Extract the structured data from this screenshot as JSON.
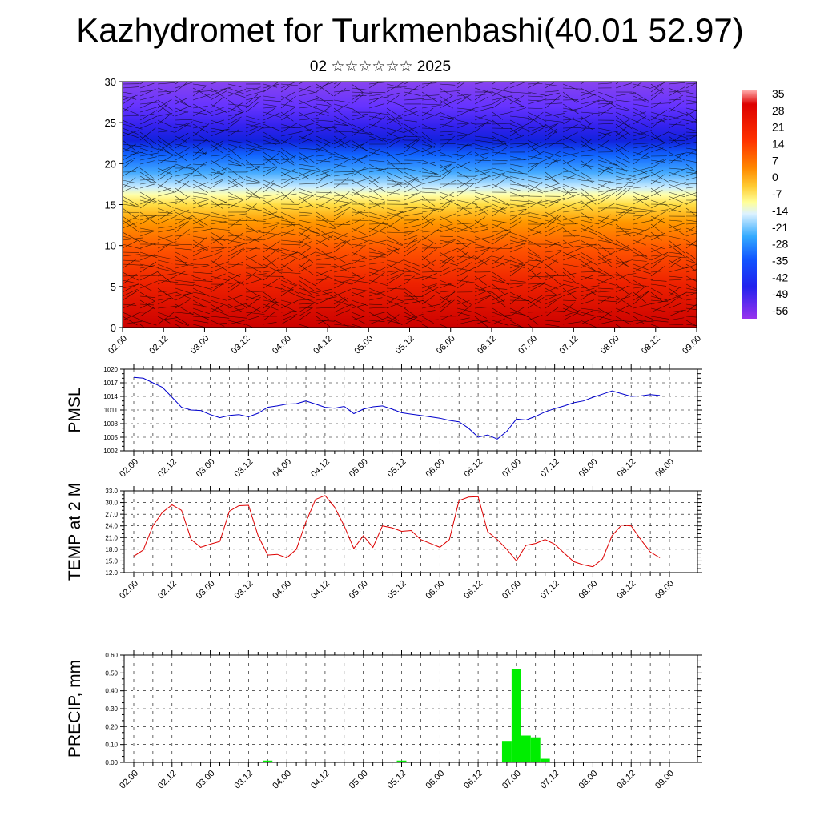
{
  "header": {
    "title": "Kazhydromet for Turkmenbashi(40.01 52.97)",
    "subtitle": "02 ☆☆☆☆☆☆ 2025"
  },
  "colors": {
    "pmsl_line": "#0000cc",
    "temp_line": "#dd0000",
    "precip_bar": "#00ee00",
    "colorbar": [
      "#ff9a9a",
      "#e60000",
      "#ff4400",
      "#ff8800",
      "#ffcc33",
      "#ffff99",
      "#cfeeff",
      "#33aaff",
      "#1133ee",
      "#4422ff",
      "#8a2be2"
    ]
  },
  "time_axis": {
    "tick_labels": [
      "02.00",
      "02.12",
      "03.00",
      "03.12",
      "04.00",
      "04.12",
      "05.00",
      "05.12",
      "06.00",
      "06.12",
      "07.00",
      "07.12",
      "08.00",
      "08.12",
      "09.00"
    ]
  },
  "chart_data": [
    {
      "type": "heatmap",
      "title": "",
      "xlabel": "",
      "ylabel": "",
      "ylim": [
        0,
        30
      ],
      "y_ticks": [
        "0",
        "5",
        "10",
        "15",
        "20",
        "25",
        "30"
      ],
      "colorbar_labels": [
        "35",
        "28",
        "21",
        "14",
        "7",
        "0",
        "-7",
        "-14",
        "-21",
        "-28",
        "-35",
        "-42",
        "-49",
        "-56"
      ],
      "overlay": "wind barbs"
    },
    {
      "type": "line",
      "ylabel": "PMSL",
      "ylim": [
        1002,
        1020
      ],
      "y_ticks": [
        "1020",
        "1017",
        "1014",
        "1011",
        "1008",
        "1005",
        "1002"
      ],
      "xlim_hours": [
        0,
        168
      ],
      "x_hours": [
        0,
        3,
        6,
        9,
        12,
        15,
        18,
        21,
        24,
        27,
        30,
        33,
        36,
        39,
        42,
        45,
        48,
        51,
        54,
        57,
        60,
        63,
        66,
        69,
        72,
        75,
        78,
        81,
        84,
        87,
        90,
        93,
        96,
        99,
        102,
        105,
        108,
        111,
        114,
        117,
        120,
        123,
        126,
        129,
        132,
        135,
        138,
        141,
        144,
        147,
        150,
        153,
        156,
        159,
        162,
        165
      ],
      "values": [
        1018.2,
        1018.0,
        1017.0,
        1016.0,
        1013.8,
        1011.6,
        1011.0,
        1010.9,
        1010.0,
        1009.3,
        1009.8,
        1010.0,
        1009.5,
        1010.3,
        1011.6,
        1011.9,
        1012.3,
        1012.4,
        1013.0,
        1012.3,
        1011.6,
        1011.4,
        1011.8,
        1010.2,
        1011.2,
        1011.7,
        1011.9,
        1011.2,
        1010.4,
        1010.1,
        1009.8,
        1009.5,
        1009.2,
        1008.7,
        1008.4,
        1007.0,
        1005.0,
        1005.5,
        1004.6,
        1006.3,
        1009.0,
        1008.8,
        1009.6,
        1010.6,
        1011.3,
        1011.9,
        1012.6,
        1013.0,
        1013.8,
        1014.5,
        1015.2,
        1014.6,
        1014.0,
        1014.1,
        1014.4,
        1014.2
      ],
      "series": [
        {
          "name": "",
          "color": "#0000cc"
        }
      ]
    },
    {
      "type": "line",
      "ylabel": "TEMP at 2 M",
      "ylim": [
        12,
        33
      ],
      "y_ticks": [
        "33.0",
        "30.0",
        "27.0",
        "24.0",
        "21.0",
        "18.0",
        "15.0",
        "12.0"
      ],
      "xlim_hours": [
        0,
        168
      ],
      "x_hours": [
        0,
        3,
        6,
        9,
        12,
        15,
        18,
        21,
        24,
        27,
        30,
        33,
        36,
        39,
        42,
        45,
        48,
        51,
        54,
        57,
        60,
        63,
        66,
        69,
        72,
        75,
        78,
        81,
        84,
        87,
        90,
        93,
        96,
        99,
        102,
        105,
        108,
        111,
        114,
        117,
        120,
        123,
        126,
        129,
        132,
        135,
        138,
        141,
        144,
        147,
        150,
        153,
        156,
        159,
        162,
        165
      ],
      "values": [
        16.2,
        17.8,
        24.0,
        27.5,
        29.4,
        28.0,
        20.5,
        18.5,
        19.3,
        20.0,
        27.8,
        29.2,
        29.3,
        21.5,
        16.5,
        16.7,
        15.8,
        18.0,
        25.0,
        30.8,
        31.8,
        28.8,
        24.0,
        18.2,
        21.5,
        18.5,
        24.0,
        23.5,
        22.6,
        22.8,
        20.5,
        19.5,
        18.5,
        20.5,
        30.5,
        31.4,
        31.5,
        22.5,
        20.5,
        18.0,
        15.0,
        19.0,
        19.5,
        20.5,
        19.3,
        17.0,
        14.8,
        14.0,
        13.5,
        15.5,
        21.5,
        24.2,
        24.0,
        20.5,
        17.3,
        15.8
      ],
      "series": [
        {
          "name": "",
          "color": "#dd0000"
        }
      ]
    },
    {
      "type": "bar",
      "ylabel": "PRECIP, mm",
      "ylim": [
        0,
        0.6
      ],
      "y_ticks": [
        "0.60",
        "0.50",
        "0.40",
        "0.30",
        "0.20",
        "0.10",
        "0.00"
      ],
      "xlim_hours": [
        0,
        168
      ],
      "bars": [
        {
          "hour": 42,
          "value": 0.01
        },
        {
          "hour": 84,
          "value": 0.01
        },
        {
          "hour": 117,
          "value": 0.12
        },
        {
          "hour": 120,
          "value": 0.52
        },
        {
          "hour": 123,
          "value": 0.15
        },
        {
          "hour": 126,
          "value": 0.14
        },
        {
          "hour": 129,
          "value": 0.02
        }
      ],
      "series": [
        {
          "name": "",
          "color": "#00ee00"
        }
      ]
    }
  ]
}
